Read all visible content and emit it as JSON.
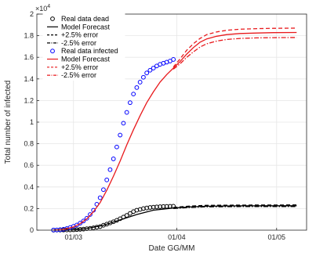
{
  "chart_data": {
    "type": "line",
    "title": "",
    "xlabel": "Date GG/MM",
    "ylabel": "Total number of infected",
    "y_exponent_label": "×10",
    "y_exponent_power": "4",
    "xlim": [
      "2020-02-19",
      "2020-05-10"
    ],
    "ylim": [
      0,
      20000
    ],
    "x_ticks": [
      {
        "date": "2020-03-01",
        "label": "01/03"
      },
      {
        "date": "2020-04-01",
        "label": "01/04"
      },
      {
        "date": "2020-05-01",
        "label": "01/05"
      }
    ],
    "y_ticks": [
      {
        "value": 0,
        "label": "0"
      },
      {
        "value": 2000,
        "label": "0.2"
      },
      {
        "value": 4000,
        "label": "0.4"
      },
      {
        "value": 6000,
        "label": "0.6"
      },
      {
        "value": 8000,
        "label": "0.8"
      },
      {
        "value": 10000,
        "label": "1"
      },
      {
        "value": 12000,
        "label": "1.2"
      },
      {
        "value": 14000,
        "label": "1.4"
      },
      {
        "value": 16000,
        "label": "1.6"
      },
      {
        "value": 18000,
        "label": "1.8"
      },
      {
        "value": 20000,
        "label": "2"
      }
    ],
    "grid": true,
    "legend_position": "top-left",
    "series": [
      {
        "name": "Real data dead",
        "kind": "markers",
        "marker": "circle",
        "color": "#000000",
        "x": [
          "2020-02-24",
          "2020-02-25",
          "2020-02-26",
          "2020-02-27",
          "2020-02-28",
          "2020-02-29",
          "2020-03-01",
          "2020-03-02",
          "2020-03-03",
          "2020-03-04",
          "2020-03-05",
          "2020-03-06",
          "2020-03-07",
          "2020-03-08",
          "2020-03-09",
          "2020-03-10",
          "2020-03-11",
          "2020-03-12",
          "2020-03-13",
          "2020-03-14",
          "2020-03-15",
          "2020-03-16",
          "2020-03-17",
          "2020-03-18",
          "2020-03-19",
          "2020-03-20",
          "2020-03-21",
          "2020-03-22",
          "2020-03-23",
          "2020-03-24",
          "2020-03-25",
          "2020-03-26",
          "2020-03-27",
          "2020-03-28",
          "2020-03-29",
          "2020-03-30",
          "2020-03-31"
        ],
        "y": [
          5,
          9,
          12,
          17,
          21,
          26,
          34,
          52,
          77,
          98,
          136,
          168,
          218,
          275,
          331,
          456,
          560,
          670,
          780,
          912,
          1060,
          1210,
          1370,
          1550,
          1720,
          1850,
          1920,
          2000,
          2050,
          2100,
          2130,
          2150,
          2170,
          2190,
          2200,
          2210,
          2220
        ]
      },
      {
        "name": "Model Forecast",
        "kind": "line",
        "style": "solid",
        "color": "#000000",
        "x": [
          "2020-02-24",
          "2020-03-01",
          "2020-03-05",
          "2020-03-10",
          "2020-03-15",
          "2020-03-20",
          "2020-03-25",
          "2020-03-31",
          "2020-04-05",
          "2020-04-10",
          "2020-04-20",
          "2020-05-07"
        ],
        "y": [
          10,
          60,
          150,
          450,
          950,
          1450,
          1850,
          2050,
          2150,
          2220,
          2250,
          2260
        ]
      },
      {
        "name": "+2.5% error",
        "kind": "line",
        "style": "dashed",
        "color": "#000000",
        "x": [
          "2020-03-31",
          "2020-04-05",
          "2020-04-10",
          "2020-04-20",
          "2020-05-07"
        ],
        "y": [
          2100,
          2230,
          2300,
          2320,
          2330
        ]
      },
      {
        "name": "-2.5% error",
        "kind": "line",
        "style": "dashdot",
        "color": "#000000",
        "x": [
          "2020-03-31",
          "2020-04-05",
          "2020-04-10",
          "2020-04-20",
          "2020-05-07"
        ],
        "y": [
          2000,
          2100,
          2160,
          2180,
          2190
        ]
      },
      {
        "name": "Real data infected",
        "kind": "markers",
        "marker": "circle",
        "color": "#0000ff",
        "x": [
          "2020-02-24",
          "2020-02-25",
          "2020-02-26",
          "2020-02-27",
          "2020-02-28",
          "2020-02-29",
          "2020-03-01",
          "2020-03-02",
          "2020-03-03",
          "2020-03-04",
          "2020-03-05",
          "2020-03-06",
          "2020-03-07",
          "2020-03-08",
          "2020-03-09",
          "2020-03-10",
          "2020-03-11",
          "2020-03-12",
          "2020-03-13",
          "2020-03-14",
          "2020-03-15",
          "2020-03-16",
          "2020-03-17",
          "2020-03-18",
          "2020-03-19",
          "2020-03-20",
          "2020-03-21",
          "2020-03-22",
          "2020-03-23",
          "2020-03-24",
          "2020-03-25",
          "2020-03-26",
          "2020-03-27",
          "2020-03-28",
          "2020-03-29",
          "2020-03-30",
          "2020-03-31"
        ],
        "y": [
          10,
          20,
          40,
          80,
          150,
          240,
          350,
          480,
          650,
          850,
          1100,
          1450,
          1850,
          2400,
          3000,
          3750,
          4650,
          5600,
          6600,
          7700,
          8800,
          9900,
          10900,
          11800,
          12600,
          13200,
          13700,
          14150,
          14550,
          14800,
          15000,
          15200,
          15350,
          15450,
          15550,
          15650,
          15800
        ]
      },
      {
        "name": "Model Forecast",
        "kind": "line",
        "style": "solid",
        "color": "#e8191c",
        "x": [
          "2020-02-24",
          "2020-02-27",
          "2020-03-01",
          "2020-03-03",
          "2020-03-05",
          "2020-03-07",
          "2020-03-09",
          "2020-03-11",
          "2020-03-13",
          "2020-03-15",
          "2020-03-17",
          "2020-03-19",
          "2020-03-21",
          "2020-03-23",
          "2020-03-25",
          "2020-03-27",
          "2020-03-29",
          "2020-03-31",
          "2020-04-02",
          "2020-04-04",
          "2020-04-06",
          "2020-04-08",
          "2020-04-10",
          "2020-04-13",
          "2020-04-16",
          "2020-04-20",
          "2020-04-25",
          "2020-04-30",
          "2020-05-07"
        ],
        "y": [
          10,
          60,
          300,
          600,
          1050,
          1700,
          2550,
          3700,
          5000,
          6400,
          7900,
          9300,
          10600,
          11800,
          12800,
          13700,
          14400,
          15000,
          15600,
          16300,
          16900,
          17400,
          17700,
          17950,
          18100,
          18200,
          18250,
          18280,
          18300
        ]
      },
      {
        "name": "+2.5% error",
        "kind": "line",
        "style": "dashed",
        "color": "#e8191c",
        "x": [
          "2020-03-31",
          "2020-04-02",
          "2020-04-04",
          "2020-04-06",
          "2020-04-08",
          "2020-04-10",
          "2020-04-13",
          "2020-04-16",
          "2020-04-20",
          "2020-04-25",
          "2020-04-30",
          "2020-05-07"
        ],
        "y": [
          15100,
          15850,
          16650,
          17250,
          17750,
          18100,
          18350,
          18500,
          18600,
          18650,
          18680,
          18700
        ]
      },
      {
        "name": "-2.5% error",
        "kind": "line",
        "style": "dashdot",
        "color": "#e8191c",
        "x": [
          "2020-03-31",
          "2020-04-02",
          "2020-04-04",
          "2020-04-06",
          "2020-04-08",
          "2020-04-10",
          "2020-04-13",
          "2020-04-16",
          "2020-04-20",
          "2020-04-25",
          "2020-04-30",
          "2020-05-07"
        ],
        "y": [
          14900,
          15400,
          16000,
          16500,
          16950,
          17250,
          17500,
          17650,
          17750,
          17800,
          17820,
          17830
        ]
      }
    ]
  }
}
